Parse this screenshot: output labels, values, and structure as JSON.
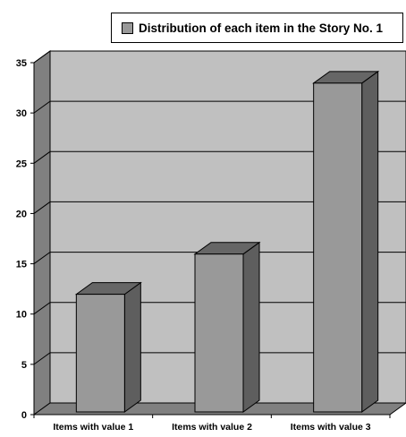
{
  "chart_data": {
    "type": "bar",
    "title": "",
    "xlabel": "",
    "ylabel": "",
    "categories": [
      "Items with value 1",
      "Items with value 2",
      "Items with value 3"
    ],
    "series": [
      {
        "name": "Distribution of each item in the Story No. 1",
        "values": [
          11.7,
          15.7,
          32.7
        ]
      }
    ],
    "ylim": [
      0,
      35
    ],
    "yticks": [
      "0",
      "5",
      "10",
      "15",
      "20",
      "25",
      "30",
      "35"
    ],
    "grid": true,
    "legend_position": "top-right",
    "style": "3d",
    "colors": {
      "wall": "#c0c0c0",
      "side_wall": "#808080",
      "floor": "#808080",
      "bar_front": "#999999",
      "bar_top": "#666666",
      "bar_side": "#5e5e5e",
      "gridline": "#000000"
    }
  }
}
